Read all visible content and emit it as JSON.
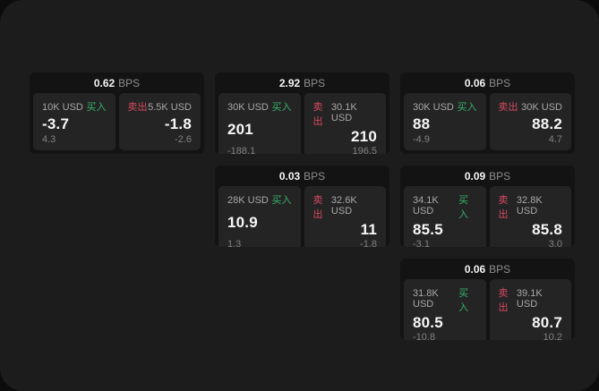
{
  "app": {
    "unit_label": "BPS",
    "buy_label": "买入",
    "sell_label": "卖出"
  },
  "colors": {
    "backdrop": "#0c0c0c",
    "panel_bg": "#1c1c1d",
    "card_bg": "#131313",
    "cell_bg": "#242425",
    "buy_green": "#35b267",
    "sell_red": "#d8495d"
  },
  "cards": [
    {
      "bps": "0.62",
      "buy": {
        "amount": "10K USD",
        "value": "-3.7",
        "sub": "4.3"
      },
      "sell": {
        "amount": "5.5K USD",
        "value": "-1.8",
        "sub": "-2.6"
      }
    },
    {
      "bps": "2.92",
      "buy": {
        "amount": "30K USD",
        "value": "201",
        "sub": "-188.1"
      },
      "sell": {
        "amount": "30.1K USD",
        "value": "210",
        "sub": "196.5"
      }
    },
    {
      "bps": "0.06",
      "buy": {
        "amount": "30K USD",
        "value": "88",
        "sub": "-4.9"
      },
      "sell": {
        "amount": "30K USD",
        "value": "88.2",
        "sub": "4.7"
      }
    },
    {
      "bps": "0.03",
      "buy": {
        "amount": "28K USD",
        "value": "10.9",
        "sub": "1.3"
      },
      "sell": {
        "amount": "32.6K USD",
        "value": "11",
        "sub": "-1.8"
      }
    },
    {
      "bps": "0.09",
      "buy": {
        "amount": "34.1K USD",
        "value": "85.5",
        "sub": "-3.1"
      },
      "sell": {
        "amount": "32.8K USD",
        "value": "85.8",
        "sub": "3.0"
      }
    },
    {
      "bps": "0.06",
      "buy": {
        "amount": "31.8K USD",
        "value": "80.5",
        "sub": "-10.8"
      },
      "sell": {
        "amount": "39.1K USD",
        "value": "80.7",
        "sub": "10.2"
      }
    }
  ]
}
